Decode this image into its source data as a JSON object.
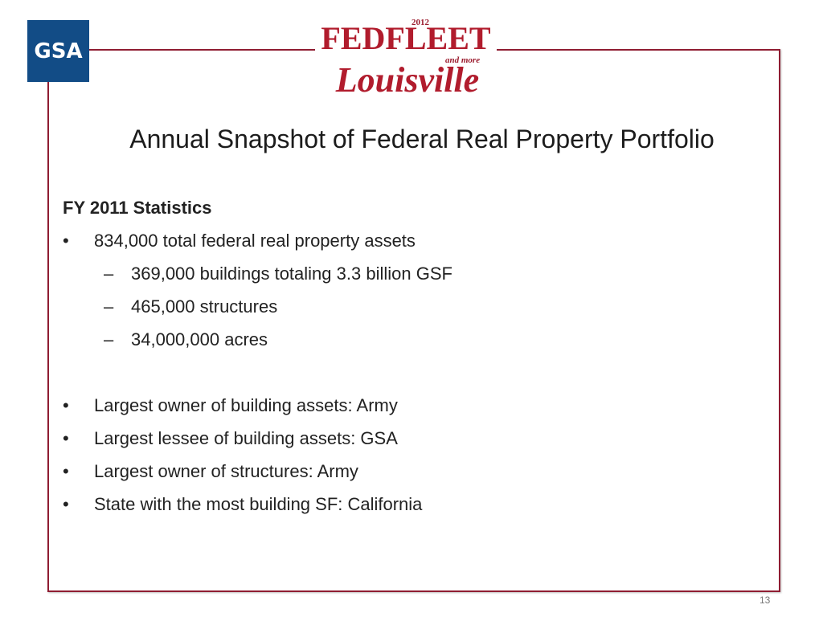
{
  "logos": {
    "gsa_text": "GSA",
    "event_year": "2012",
    "event_name": "FEDFLEET",
    "event_tagline": "and more",
    "event_city": "Louisville"
  },
  "slide": {
    "title": "Annual Snapshot of Federal Real Property Portfolio",
    "section_heading": "FY 2011 Statistics",
    "bullets": [
      "834,000 total federal real property assets",
      "Largest owner of building assets: Army",
      "Largest lessee of building assets: GSA",
      "Largest owner of structures: Army",
      "State with the most building SF: California"
    ],
    "sub_bullets": [
      "369,000 buildings totaling 3.3 billion GSF",
      "465,000 structures",
      "34,000,000 acres"
    ],
    "bullet_glyph": "•",
    "sub_bullet_glyph": "–",
    "page_number": "13"
  },
  "colors": {
    "frame": "#8f1d32",
    "gsa_blue": "#124c86",
    "fedfleet_red": "#b11c2d"
  }
}
